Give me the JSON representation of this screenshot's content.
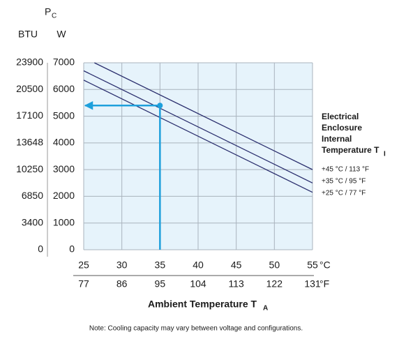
{
  "chart_data": {
    "type": "line",
    "y_label": "P",
    "y_label_sub": "C",
    "y_unit": "W",
    "y2_unit": "BTU",
    "x_label": "Ambient Temperature T",
    "x_label_sub": "A",
    "x_unit": "°C",
    "x2_unit": "°F",
    "legend_title": [
      "Electrical",
      "Enclosure",
      "Internal",
      "Temperature T"
    ],
    "legend_title_sub": "I",
    "note": "Note: Cooling capacity may vary between voltage and configurations.",
    "xlim": [
      25,
      55
    ],
    "xticks": [
      25,
      30,
      35,
      40,
      45,
      50,
      55
    ],
    "x2lim": [
      77,
      131
    ],
    "x2ticks": [
      77,
      86,
      95,
      104,
      113,
      122,
      131
    ],
    "ylim": [
      0,
      7000
    ],
    "yticks": [
      0,
      1000,
      2000,
      3000,
      4000,
      5000,
      6000,
      7000
    ],
    "y2lim": [
      0,
      23900
    ],
    "y2ticks": [
      0,
      3400,
      6850,
      10250,
      13648,
      17100,
      20500,
      23900
    ],
    "grid": true,
    "series": [
      {
        "name": "+45 °C / 113 °F",
        "color": "#2b2f6e",
        "x": [
          26.4,
          55
        ],
        "values": [
          7000,
          3000
        ]
      },
      {
        "name": "+35 °C / 95 °F",
        "color": "#2b2f6e",
        "x": [
          25,
          55
        ],
        "values": [
          6700,
          2500
        ]
      },
      {
        "name": "+25 °C / 77 °F",
        "color": "#2b2f6e",
        "x": [
          25,
          55
        ],
        "values": [
          6350,
          2150
        ]
      }
    ],
    "marker": {
      "x": 35,
      "y": 5400,
      "color": "#1ea0dc"
    }
  }
}
